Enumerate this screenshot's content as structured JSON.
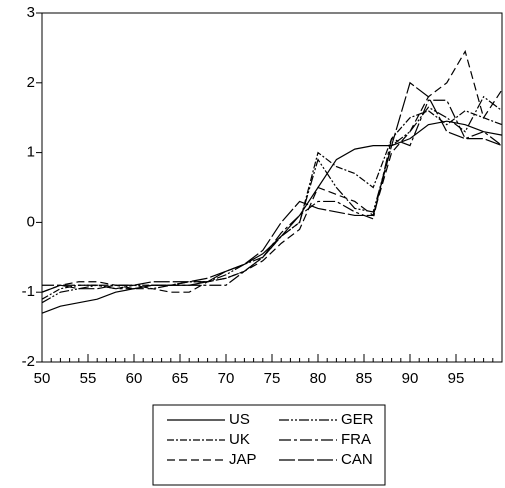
{
  "chart_data": {
    "type": "line",
    "x": [
      50,
      52,
      54,
      56,
      58,
      60,
      62,
      64,
      66,
      68,
      70,
      72,
      74,
      76,
      78,
      80,
      82,
      84,
      86,
      88,
      90,
      92,
      94,
      96,
      98,
      100
    ],
    "series": [
      {
        "name": "US",
        "color": "#000000",
        "dash": "none",
        "values": [
          -1.3,
          -1.2,
          -1.15,
          -1.1,
          -1.0,
          -0.95,
          -0.9,
          -0.9,
          -0.9,
          -0.85,
          -0.7,
          -0.6,
          -0.45,
          -0.2,
          0.1,
          0.5,
          0.9,
          1.05,
          1.1,
          1.1,
          1.2,
          1.4,
          1.45,
          1.4,
          1.3,
          1.25
        ]
      },
      {
        "name": "UK",
        "color": "#000000",
        "dash": "7,2,2,2",
        "values": [
          -1.1,
          -0.95,
          -0.9,
          -0.9,
          -0.95,
          -0.9,
          -0.9,
          -0.9,
          -0.85,
          -0.85,
          -0.8,
          -0.7,
          -0.5,
          -0.2,
          0.0,
          1.0,
          0.8,
          0.7,
          0.5,
          1.2,
          1.5,
          1.6,
          1.4,
          1.6,
          1.5,
          1.4
        ]
      },
      {
        "name": "JAP",
        "color": "#000000",
        "dash": "8,4",
        "values": [
          -1.0,
          -0.9,
          -0.85,
          -0.85,
          -0.9,
          -0.95,
          -0.95,
          -1.0,
          -1.0,
          -0.85,
          -0.8,
          -0.7,
          -0.55,
          -0.3,
          -0.1,
          0.5,
          0.4,
          0.3,
          0.1,
          1.0,
          1.3,
          1.8,
          2.0,
          2.45,
          1.5,
          1.9
        ]
      },
      {
        "name": "GER",
        "color": "#000000",
        "dash": "10,2,2,2,2,2",
        "values": [
          -1.15,
          -1.0,
          -0.95,
          -0.9,
          -0.9,
          -0.9,
          -0.95,
          -0.9,
          -0.85,
          -0.85,
          -0.75,
          -0.6,
          -0.5,
          -0.2,
          0.0,
          0.9,
          0.5,
          0.2,
          0.15,
          1.1,
          1.3,
          1.65,
          1.5,
          1.3,
          1.8,
          1.6
        ]
      },
      {
        "name": "FRA",
        "color": "#000000",
        "dash": "12,3,3,3",
        "values": [
          -0.9,
          -0.9,
          -0.9,
          -0.9,
          -0.95,
          -0.95,
          -0.9,
          -0.9,
          -0.9,
          -0.9,
          -0.9,
          -0.7,
          -0.5,
          -0.15,
          0.1,
          0.3,
          0.3,
          0.15,
          0.05,
          1.2,
          1.1,
          1.75,
          1.75,
          1.2,
          1.3,
          1.1
        ]
      },
      {
        "name": "CAN",
        "color": "#000000",
        "dash": "16,3",
        "values": [
          -1.0,
          -0.9,
          -0.95,
          -0.95,
          -0.9,
          -0.9,
          -0.85,
          -0.85,
          -0.85,
          -0.8,
          -0.7,
          -0.6,
          -0.4,
          0.0,
          0.3,
          0.2,
          0.15,
          0.1,
          0.1,
          1.1,
          2.0,
          1.8,
          1.3,
          1.2,
          1.2,
          1.1
        ]
      }
    ],
    "xlim": [
      50,
      100
    ],
    "xticks": [
      50,
      55,
      60,
      65,
      70,
      75,
      80,
      85,
      90,
      95
    ],
    "ylim": [
      -2,
      3
    ],
    "yticks": [
      -2,
      -1,
      0,
      1,
      2,
      3
    ],
    "legend": "bottom"
  }
}
